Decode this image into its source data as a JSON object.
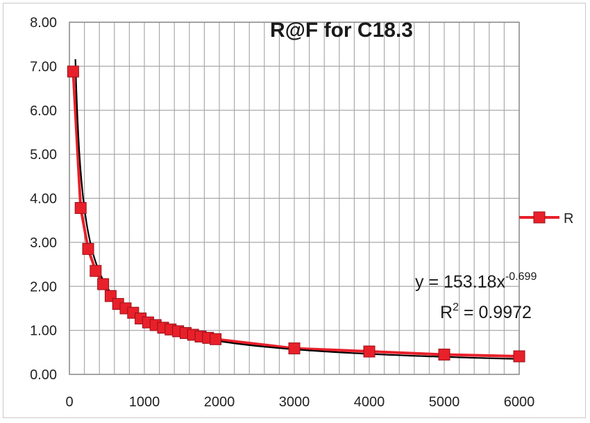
{
  "chart_data": {
    "type": "scatter",
    "title": "R@F for C18.3",
    "xlabel": "",
    "ylabel": "",
    "xlim": [
      0,
      6000
    ],
    "ylim": [
      0,
      8
    ],
    "x_ticks": [
      "0",
      "1000",
      "2000",
      "3000",
      "4000",
      "5000",
      "6000"
    ],
    "y_ticks": [
      "0.00",
      "1.00",
      "2.00",
      "3.00",
      "4.00",
      "5.00",
      "6.00",
      "7.00",
      "8.00"
    ],
    "grid": true,
    "legend_position": "right",
    "series": [
      {
        "name": "R",
        "color": "#e8202a",
        "x": [
          50,
          150,
          250,
          350,
          450,
          550,
          650,
          750,
          850,
          950,
          1050,
          1150,
          1250,
          1350,
          1450,
          1550,
          1650,
          1750,
          1850,
          1950,
          3000,
          4000,
          5000,
          6000
        ],
        "y": [
          6.88,
          3.78,
          2.85,
          2.35,
          2.05,
          1.78,
          1.6,
          1.5,
          1.4,
          1.27,
          1.18,
          1.12,
          1.06,
          1.02,
          0.98,
          0.94,
          0.9,
          0.86,
          0.83,
          0.8,
          0.59,
          0.52,
          0.45,
          0.41
        ]
      }
    ],
    "trendline": {
      "type": "power",
      "a": 153.18,
      "b": -0.699,
      "color": "#000000",
      "equation_base": "y = 153.18x",
      "equation_exp": "-0.699",
      "r2_base": "R",
      "r2_exp": "2",
      "r2_rest": " = 0.9972"
    }
  }
}
